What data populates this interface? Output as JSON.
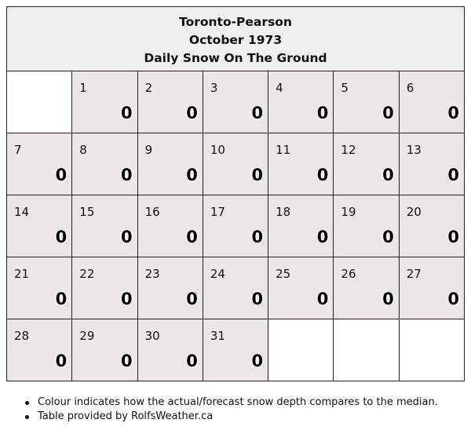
{
  "header": {
    "station": "Toronto-Pearson",
    "month": "October 1973",
    "subtitle": "Daily Snow On The Ground"
  },
  "calendar": {
    "weeks": [
      [
        {
          "day": "",
          "value": ""
        },
        {
          "day": "1",
          "value": "0"
        },
        {
          "day": "2",
          "value": "0"
        },
        {
          "day": "3",
          "value": "0"
        },
        {
          "day": "4",
          "value": "0"
        },
        {
          "day": "5",
          "value": "0"
        },
        {
          "day": "6",
          "value": "0"
        }
      ],
      [
        {
          "day": "7",
          "value": "0"
        },
        {
          "day": "8",
          "value": "0"
        },
        {
          "day": "9",
          "value": "0"
        },
        {
          "day": "10",
          "value": "0"
        },
        {
          "day": "11",
          "value": "0"
        },
        {
          "day": "12",
          "value": "0"
        },
        {
          "day": "13",
          "value": "0"
        }
      ],
      [
        {
          "day": "14",
          "value": "0"
        },
        {
          "day": "15",
          "value": "0"
        },
        {
          "day": "16",
          "value": "0"
        },
        {
          "day": "17",
          "value": "0"
        },
        {
          "day": "18",
          "value": "0"
        },
        {
          "day": "19",
          "value": "0"
        },
        {
          "day": "20",
          "value": "0"
        }
      ],
      [
        {
          "day": "21",
          "value": "0"
        },
        {
          "day": "22",
          "value": "0"
        },
        {
          "day": "23",
          "value": "0"
        },
        {
          "day": "24",
          "value": "0"
        },
        {
          "day": "25",
          "value": "0"
        },
        {
          "day": "26",
          "value": "0"
        },
        {
          "day": "27",
          "value": "0"
        }
      ],
      [
        {
          "day": "28",
          "value": "0"
        },
        {
          "day": "29",
          "value": "0"
        },
        {
          "day": "30",
          "value": "0"
        },
        {
          "day": "31",
          "value": "0"
        },
        {
          "day": "",
          "value": ""
        },
        {
          "day": "",
          "value": ""
        },
        {
          "day": "",
          "value": ""
        }
      ]
    ],
    "day_cell_color": "#ede6e8",
    "empty_cell_color": "#ffffff"
  },
  "notes": [
    "Colour indicates how the actual/forecast snow depth compares to the median.",
    "Table provided by RolfsWeather.ca"
  ]
}
